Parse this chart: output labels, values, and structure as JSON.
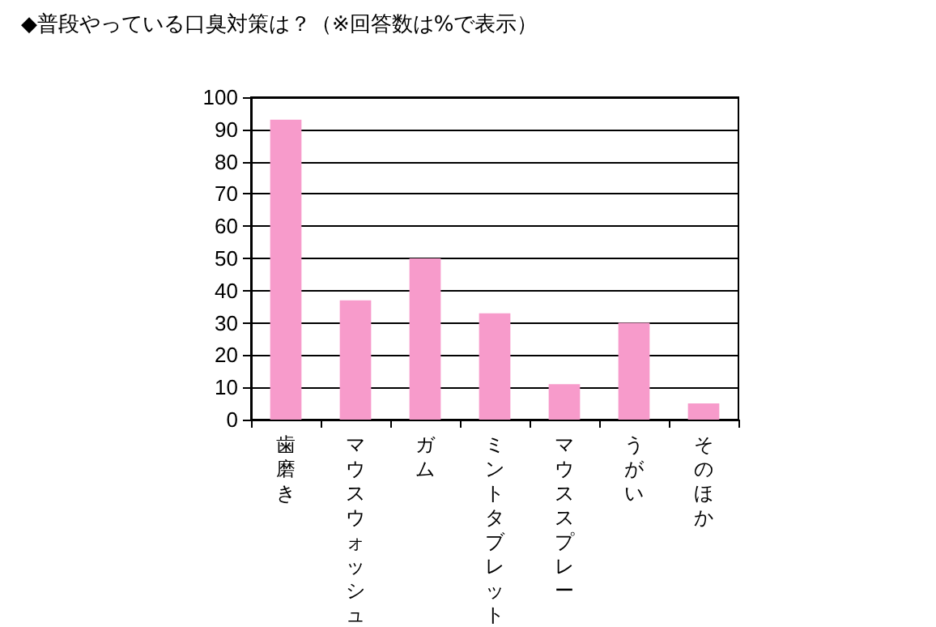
{
  "chart_data": {
    "type": "bar",
    "title": "◆普段やっている口臭対策は？（※回答数は%で表示）",
    "categories": [
      "歯磨き",
      "マウスウォッシュ",
      "ガム",
      "ミントタブレット",
      "マウススプレー",
      "うがい",
      "そのほか"
    ],
    "values": [
      93,
      37,
      50,
      33,
      11,
      30,
      5
    ],
    "color": "#f79bcb",
    "ylim": [
      0,
      100
    ],
    "yticks": [
      0,
      10,
      20,
      30,
      40,
      50,
      60,
      70,
      80,
      90,
      100
    ],
    "grid": "y"
  }
}
